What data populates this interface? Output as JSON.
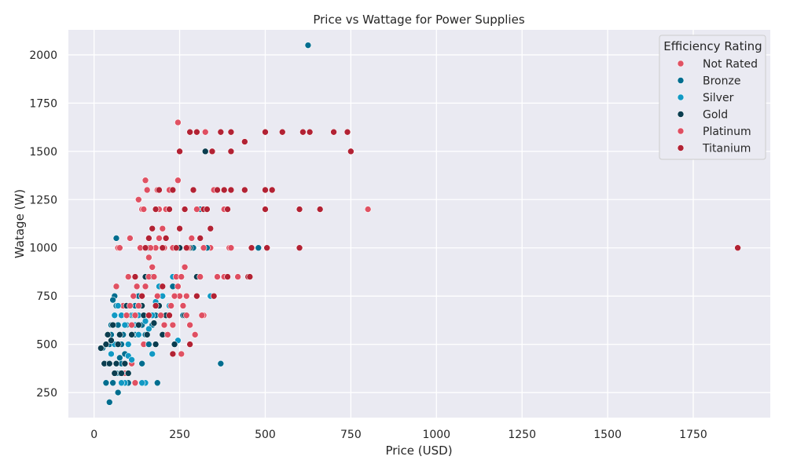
{
  "chart_data": {
    "type": "scatter",
    "title": "Price vs Wattage for Power Supplies",
    "xlabel": "Price (USD)",
    "ylabel": "Watage (W)",
    "xlim": [
      -75,
      1975
    ],
    "ylim": [
      120,
      2130
    ],
    "xticks": [
      0,
      250,
      500,
      750,
      1000,
      1250,
      1500,
      1750
    ],
    "yticks": [
      250,
      500,
      750,
      1000,
      1250,
      1500,
      1750,
      2000
    ],
    "grid": true,
    "background": "#eaeaf2",
    "legend": {
      "title": "Efficiency Rating",
      "position": "top-right"
    },
    "series": [
      {
        "name": "Not Rated",
        "color": "#e05263",
        "points": [
          [
            70,
            1000
          ],
          [
            75,
            1000
          ],
          [
            130,
            1250
          ],
          [
            150,
            1350
          ],
          [
            105,
            1050
          ],
          [
            125,
            800
          ],
          [
            245,
            1650
          ],
          [
            245,
            1350
          ],
          [
            340,
            1000
          ],
          [
            395,
            1000
          ],
          [
            800,
            1200
          ],
          [
            255,
            450
          ],
          [
            320,
            650
          ],
          [
            120,
            300
          ],
          [
            90,
            350
          ],
          [
            65,
            800
          ],
          [
            145,
            500
          ],
          [
            110,
            400
          ],
          [
            170,
            450
          ],
          [
            85,
            700
          ],
          [
            210,
            550
          ],
          [
            230,
            600
          ],
          [
            140,
            1200
          ],
          [
            185,
            1300
          ],
          [
            270,
            750
          ],
          [
            100,
            850
          ],
          [
            160,
            950
          ],
          [
            190,
            1200
          ],
          [
            205,
            1000
          ]
        ]
      },
      {
        "name": "Bronze",
        "color": "#006d8f",
        "points": [
          [
            35,
            300
          ],
          [
            40,
            400
          ],
          [
            45,
            500
          ],
          [
            50,
            550
          ],
          [
            55,
            600
          ],
          [
            60,
            650
          ],
          [
            65,
            700
          ],
          [
            40,
            550
          ],
          [
            50,
            600
          ],
          [
            60,
            750
          ],
          [
            70,
            600
          ],
          [
            75,
            350
          ],
          [
            80,
            400
          ],
          [
            90,
            450
          ],
          [
            100,
            500
          ],
          [
            45,
            200
          ],
          [
            70,
            250
          ],
          [
            55,
            300
          ],
          [
            65,
            350
          ],
          [
            80,
            500
          ],
          [
            85,
            550
          ],
          [
            95,
            600
          ],
          [
            110,
            650
          ],
          [
            120,
            700
          ],
          [
            130,
            750
          ],
          [
            140,
            600
          ],
          [
            150,
            550
          ],
          [
            160,
            500
          ],
          [
            170,
            600
          ],
          [
            180,
            650
          ],
          [
            190,
            700
          ],
          [
            200,
            750
          ],
          [
            230,
            800
          ],
          [
            240,
            850
          ],
          [
            260,
            650
          ],
          [
            290,
            1000
          ],
          [
            310,
            1200
          ],
          [
            330,
            1000
          ],
          [
            370,
            400
          ],
          [
            480,
            1000
          ],
          [
            625,
            2050
          ],
          [
            65,
            1050
          ],
          [
            185,
            300
          ],
          [
            140,
            400
          ],
          [
            100,
            300
          ],
          [
            25,
            480
          ],
          [
            55,
            730
          ],
          [
            75,
            430
          ],
          [
            120,
            550
          ],
          [
            205,
            600
          ]
        ]
      },
      {
        "name": "Silver",
        "color": "#1199c4",
        "points": [
          [
            60,
            650
          ],
          [
            70,
            700
          ],
          [
            80,
            650
          ],
          [
            90,
            600
          ],
          [
            100,
            500
          ],
          [
            110,
            550
          ],
          [
            120,
            600
          ],
          [
            130,
            650
          ],
          [
            140,
            700
          ],
          [
            150,
            620
          ],
          [
            160,
            580
          ],
          [
            170,
            650
          ],
          [
            180,
            720
          ],
          [
            190,
            800
          ],
          [
            200,
            750
          ],
          [
            220,
            700
          ],
          [
            230,
            850
          ],
          [
            245,
            520
          ],
          [
            340,
            750
          ],
          [
            150,
            300
          ],
          [
            90,
            300
          ],
          [
            100,
            440
          ],
          [
            110,
            420
          ],
          [
            60,
            500
          ],
          [
            80,
            300
          ],
          [
            140,
            300
          ],
          [
            170,
            450
          ],
          [
            50,
            450
          ],
          [
            115,
            650
          ],
          [
            130,
            550
          ]
        ]
      },
      {
        "name": "Gold",
        "color": "#0b3d4f",
        "points": [
          [
            20,
            480
          ],
          [
            30,
            400
          ],
          [
            35,
            500
          ],
          [
            40,
            550
          ],
          [
            45,
            400
          ],
          [
            50,
            520
          ],
          [
            55,
            600
          ],
          [
            60,
            350
          ],
          [
            65,
            400
          ],
          [
            70,
            500
          ],
          [
            80,
            350
          ],
          [
            90,
            400
          ],
          [
            100,
            350
          ],
          [
            110,
            550
          ],
          [
            120,
            650
          ],
          [
            130,
            600
          ],
          [
            140,
            700
          ],
          [
            150,
            850
          ],
          [
            160,
            1000
          ],
          [
            170,
            850
          ],
          [
            180,
            500
          ],
          [
            190,
            700
          ],
          [
            200,
            550
          ],
          [
            210,
            650
          ],
          [
            235,
            500
          ],
          [
            250,
            1000
          ],
          [
            265,
            650
          ],
          [
            280,
            1000
          ],
          [
            300,
            850
          ],
          [
            325,
            1500
          ],
          [
            75,
            550
          ],
          [
            95,
            700
          ],
          [
            145,
            650
          ],
          [
            175,
            610
          ],
          [
            155,
            550
          ]
        ]
      },
      {
        "name": "Platinum",
        "color": "#df4f62",
        "points": [
          [
            110,
            600
          ],
          [
            120,
            650
          ],
          [
            130,
            700
          ],
          [
            140,
            750
          ],
          [
            150,
            800
          ],
          [
            160,
            850
          ],
          [
            170,
            900
          ],
          [
            180,
            1000
          ],
          [
            190,
            1050
          ],
          [
            200,
            1100
          ],
          [
            210,
            1200
          ],
          [
            220,
            1300
          ],
          [
            230,
            1000
          ],
          [
            240,
            850
          ],
          [
            250,
            750
          ],
          [
            260,
            700
          ],
          [
            270,
            650
          ],
          [
            280,
            600
          ],
          [
            295,
            550
          ],
          [
            310,
            850
          ],
          [
            320,
            1000
          ],
          [
            325,
            1600
          ],
          [
            350,
            1300
          ],
          [
            360,
            850
          ],
          [
            380,
            1200
          ],
          [
            400,
            1000
          ],
          [
            420,
            850
          ],
          [
            95,
            650
          ],
          [
            105,
            700
          ],
          [
            115,
            750
          ],
          [
            125,
            800
          ],
          [
            135,
            1000
          ],
          [
            145,
            1200
          ],
          [
            155,
            1300
          ],
          [
            165,
            1000
          ],
          [
            175,
            850
          ],
          [
            185,
            750
          ],
          [
            195,
            650
          ],
          [
            205,
            600
          ],
          [
            215,
            550
          ],
          [
            225,
            700
          ],
          [
            235,
            750
          ],
          [
            245,
            800
          ],
          [
            255,
            850
          ],
          [
            265,
            900
          ],
          [
            275,
            1000
          ],
          [
            285,
            1050
          ],
          [
            300,
            1200
          ],
          [
            315,
            650
          ],
          [
            380,
            850
          ]
        ]
      },
      {
        "name": "Titanium",
        "color": "#b22234",
        "points": [
          [
            150,
            1000
          ],
          [
            160,
            1050
          ],
          [
            170,
            1100
          ],
          [
            180,
            1200
          ],
          [
            190,
            1300
          ],
          [
            200,
            1000
          ],
          [
            210,
            1050
          ],
          [
            220,
            1200
          ],
          [
            230,
            1300
          ],
          [
            240,
            1000
          ],
          [
            250,
            1500
          ],
          [
            250,
            1100
          ],
          [
            265,
            1200
          ],
          [
            270,
            1000
          ],
          [
            280,
            1600
          ],
          [
            290,
            1300
          ],
          [
            300,
            1600
          ],
          [
            310,
            1050
          ],
          [
            320,
            1200
          ],
          [
            330,
            1200
          ],
          [
            340,
            1100
          ],
          [
            345,
            1500
          ],
          [
            360,
            1300
          ],
          [
            370,
            1600
          ],
          [
            380,
            1300
          ],
          [
            390,
            1200
          ],
          [
            400,
            1500
          ],
          [
            400,
            1600
          ],
          [
            400,
            1300
          ],
          [
            440,
            1550
          ],
          [
            440,
            1300
          ],
          [
            450,
            850
          ],
          [
            460,
            1000
          ],
          [
            500,
            1600
          ],
          [
            500,
            1300
          ],
          [
            500,
            1200
          ],
          [
            505,
            1000
          ],
          [
            520,
            1300
          ],
          [
            550,
            1600
          ],
          [
            600,
            1200
          ],
          [
            600,
            1000
          ],
          [
            610,
            1600
          ],
          [
            630,
            1600
          ],
          [
            660,
            1200
          ],
          [
            700,
            1600
          ],
          [
            740,
            1600
          ],
          [
            750,
            1500
          ],
          [
            1880,
            1000
          ],
          [
            280,
            500
          ],
          [
            230,
            450
          ],
          [
            220,
            650
          ],
          [
            200,
            800
          ],
          [
            180,
            700
          ],
          [
            160,
            650
          ],
          [
            140,
            750
          ],
          [
            120,
            850
          ],
          [
            350,
            750
          ],
          [
            390,
            850
          ],
          [
            455,
            850
          ],
          [
            300,
            750
          ]
        ]
      }
    ]
  }
}
